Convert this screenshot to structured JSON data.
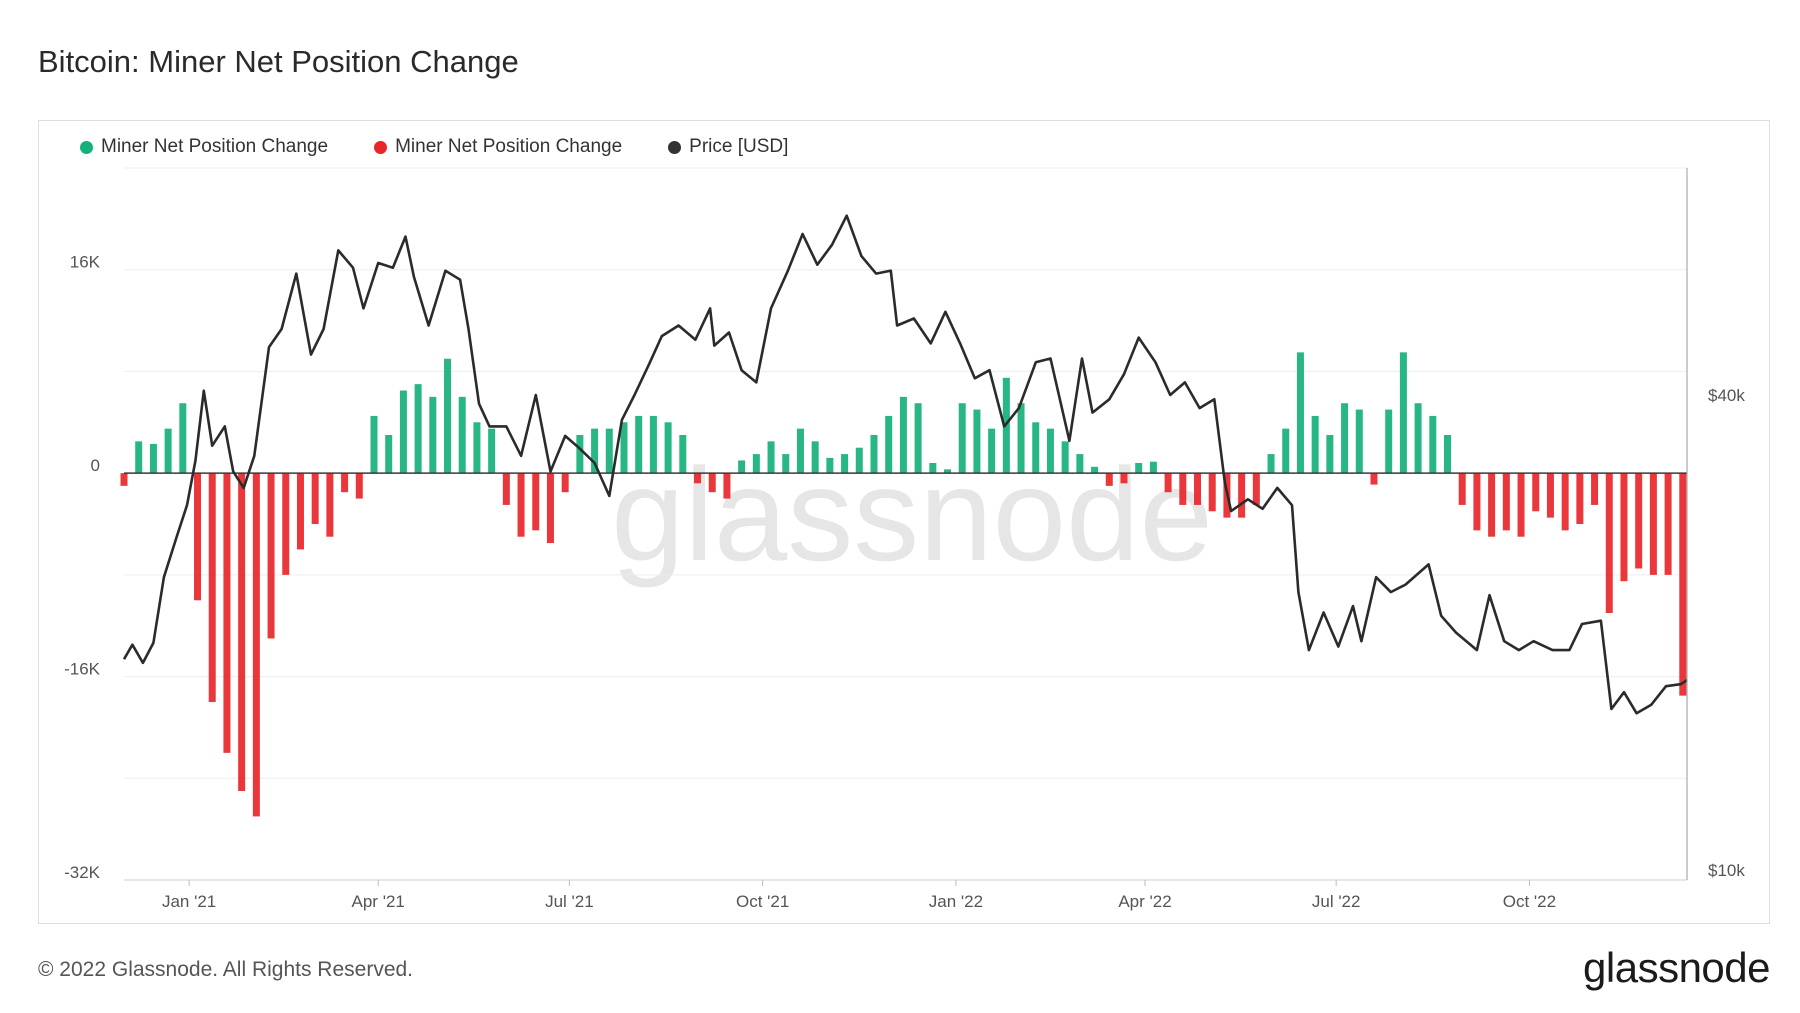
{
  "page": {
    "title": "Bitcoin: Miner Net Position Change",
    "footer": "© 2022 Glassnode. All Rights Reserved.",
    "brand": "glassnode",
    "watermark": "glassnode"
  },
  "legend": [
    {
      "label": "Miner Net Position Change",
      "color": "#16b07a"
    },
    {
      "label": "Miner Net Position Change",
      "color": "#e8262a"
    },
    {
      "label": "Price [USD]",
      "color": "#333333"
    }
  ],
  "chart_data": {
    "type": "bar",
    "title": "Bitcoin: Miner Net Position Change",
    "x_ticks": [
      "Jan '21",
      "Apr '21",
      "Jul '21",
      "Oct '21",
      "Jan '22",
      "Apr '22",
      "Jul '22",
      "Oct '22"
    ],
    "x_tick_dates": [
      "2021-01-01",
      "2021-04-01",
      "2021-07-01",
      "2021-10-01",
      "2022-01-01",
      "2022-04-01",
      "2022-07-01",
      "2022-10-01"
    ],
    "x_range": [
      "2020-12-01",
      "2022-12-15"
    ],
    "y_left": {
      "ticks": [
        "16K",
        "0",
        "-16K",
        "-32K"
      ],
      "tick_values": [
        16000,
        0,
        -16000,
        -32000
      ],
      "range": [
        -32000,
        24000
      ]
    },
    "y_right": {
      "ticks": [
        "$40k",
        "$10k"
      ],
      "tick_values": [
        40000,
        10000
      ],
      "scale": "log"
    },
    "colors": {
      "positive": "#16b07a",
      "negative": "#e8262a",
      "price": "#2b2b2b"
    },
    "grid": true,
    "legend_position": "top-left",
    "series": [
      {
        "name": "Miner Net Position Change",
        "kind": "bar",
        "points": [
          [
            "2020-12-01",
            -1000
          ],
          [
            "2020-12-08",
            2500
          ],
          [
            "2020-12-15",
            2300
          ],
          [
            "2020-12-22",
            3500
          ],
          [
            "2020-12-29",
            5500
          ],
          [
            "2021-01-05",
            -10000
          ],
          [
            "2021-01-12",
            -18000
          ],
          [
            "2021-01-19",
            -22000
          ],
          [
            "2021-01-26",
            -25000
          ],
          [
            "2021-02-02",
            -27000
          ],
          [
            "2021-02-09",
            -13000
          ],
          [
            "2021-02-16",
            -8000
          ],
          [
            "2021-02-23",
            -6000
          ],
          [
            "2021-03-02",
            -4000
          ],
          [
            "2021-03-09",
            -5000
          ],
          [
            "2021-03-16",
            -1500
          ],
          [
            "2021-03-23",
            -2000
          ],
          [
            "2021-03-30",
            4500
          ],
          [
            "2021-04-06",
            3000
          ],
          [
            "2021-04-13",
            6500
          ],
          [
            "2021-04-20",
            7000
          ],
          [
            "2021-04-27",
            6000
          ],
          [
            "2021-05-04",
            9000
          ],
          [
            "2021-05-11",
            6000
          ],
          [
            "2021-05-18",
            4000
          ],
          [
            "2021-05-25",
            3500
          ],
          [
            "2021-06-01",
            -2500
          ],
          [
            "2021-06-08",
            -5000
          ],
          [
            "2021-06-15",
            -4500
          ],
          [
            "2021-06-22",
            -5500
          ],
          [
            "2021-06-29",
            -1500
          ],
          [
            "2021-07-06",
            3000
          ],
          [
            "2021-07-13",
            3500
          ],
          [
            "2021-07-20",
            3500
          ],
          [
            "2021-07-27",
            4000
          ],
          [
            "2021-08-03",
            4500
          ],
          [
            "2021-08-10",
            4500
          ],
          [
            "2021-08-17",
            4000
          ],
          [
            "2021-08-24",
            3000
          ],
          [
            "2021-08-31",
            -800
          ],
          [
            "2021-09-07",
            -1500
          ],
          [
            "2021-09-14",
            -2000
          ],
          [
            "2021-09-21",
            1000
          ],
          [
            "2021-09-28",
            1500
          ],
          [
            "2021-10-05",
            2500
          ],
          [
            "2021-10-12",
            1500
          ],
          [
            "2021-10-19",
            3500
          ],
          [
            "2021-10-26",
            2500
          ],
          [
            "2021-11-02",
            1200
          ],
          [
            "2021-11-09",
            1500
          ],
          [
            "2021-11-16",
            2000
          ],
          [
            "2021-11-23",
            3000
          ],
          [
            "2021-11-30",
            4500
          ],
          [
            "2021-12-07",
            6000
          ],
          [
            "2021-12-14",
            5500
          ],
          [
            "2021-12-21",
            800
          ],
          [
            "2021-12-28",
            300
          ],
          [
            "2022-01-04",
            5500
          ],
          [
            "2022-01-11",
            5000
          ],
          [
            "2022-01-18",
            3500
          ],
          [
            "2022-01-25",
            7500
          ],
          [
            "2022-02-01",
            5500
          ],
          [
            "2022-02-08",
            4000
          ],
          [
            "2022-02-15",
            3500
          ],
          [
            "2022-02-22",
            2500
          ],
          [
            "2022-03-01",
            1500
          ],
          [
            "2022-03-08",
            500
          ],
          [
            "2022-03-15",
            -1000
          ],
          [
            "2022-03-22",
            -800
          ],
          [
            "2022-03-29",
            800
          ],
          [
            "2022-04-05",
            900
          ],
          [
            "2022-04-12",
            -1500
          ],
          [
            "2022-04-19",
            -2500
          ],
          [
            "2022-04-26",
            -2500
          ],
          [
            "2022-05-03",
            -3000
          ],
          [
            "2022-05-10",
            -3500
          ],
          [
            "2022-05-17",
            -3500
          ],
          [
            "2022-05-24",
            -2500
          ],
          [
            "2022-05-31",
            1500
          ],
          [
            "2022-06-07",
            3500
          ],
          [
            "2022-06-14",
            9500
          ],
          [
            "2022-06-21",
            4500
          ],
          [
            "2022-06-28",
            3000
          ],
          [
            "2022-07-05",
            5500
          ],
          [
            "2022-07-12",
            5000
          ],
          [
            "2022-07-19",
            -900
          ],
          [
            "2022-07-26",
            5000
          ],
          [
            "2022-08-02",
            9500
          ],
          [
            "2022-08-09",
            5500
          ],
          [
            "2022-08-16",
            4500
          ],
          [
            "2022-08-23",
            3000
          ],
          [
            "2022-08-30",
            -2500
          ],
          [
            "2022-09-06",
            -4500
          ],
          [
            "2022-09-13",
            -5000
          ],
          [
            "2022-09-20",
            -4500
          ],
          [
            "2022-09-27",
            -5000
          ],
          [
            "2022-10-04",
            -3000
          ],
          [
            "2022-10-11",
            -3500
          ],
          [
            "2022-10-18",
            -4500
          ],
          [
            "2022-10-25",
            -4000
          ],
          [
            "2022-11-01",
            -2500
          ],
          [
            "2022-11-08",
            -11000
          ],
          [
            "2022-11-15",
            -8500
          ],
          [
            "2022-11-22",
            -7500
          ],
          [
            "2022-11-29",
            -8000
          ],
          [
            "2022-12-06",
            -8000
          ],
          [
            "2022-12-13",
            -17500
          ]
        ]
      },
      {
        "name": "Price [USD]",
        "kind": "line",
        "axis": "right",
        "points": [
          [
            "2020-12-01",
            18500
          ],
          [
            "2020-12-05",
            19300
          ],
          [
            "2020-12-10",
            18300
          ],
          [
            "2020-12-15",
            19400
          ],
          [
            "2020-12-20",
            23500
          ],
          [
            "2020-12-26",
            26400
          ],
          [
            "2020-12-31",
            29000
          ],
          [
            "2021-01-04",
            33000
          ],
          [
            "2021-01-08",
            40500
          ],
          [
            "2021-01-12",
            34500
          ],
          [
            "2021-01-18",
            36500
          ],
          [
            "2021-01-22",
            32000
          ],
          [
            "2021-01-27",
            30500
          ],
          [
            "2021-02-01",
            33500
          ],
          [
            "2021-02-08",
            46000
          ],
          [
            "2021-02-14",
            48500
          ],
          [
            "2021-02-21",
            57000
          ],
          [
            "2021-02-28",
            45000
          ],
          [
            "2021-03-06",
            48500
          ],
          [
            "2021-03-13",
            61000
          ],
          [
            "2021-03-20",
            58000
          ],
          [
            "2021-03-25",
            51500
          ],
          [
            "2021-04-01",
            58800
          ],
          [
            "2021-04-08",
            58000
          ],
          [
            "2021-04-14",
            63500
          ],
          [
            "2021-04-18",
            56500
          ],
          [
            "2021-04-25",
            49000
          ],
          [
            "2021-05-03",
            57500
          ],
          [
            "2021-05-10",
            56000
          ],
          [
            "2021-05-14",
            48500
          ],
          [
            "2021-05-19",
            39000
          ],
          [
            "2021-05-24",
            36500
          ],
          [
            "2021-06-01",
            36500
          ],
          [
            "2021-06-08",
            33500
          ],
          [
            "2021-06-15",
            40000
          ],
          [
            "2021-06-22",
            32000
          ],
          [
            "2021-06-29",
            35500
          ],
          [
            "2021-07-06",
            34200
          ],
          [
            "2021-07-13",
            32800
          ],
          [
            "2021-07-20",
            29800
          ],
          [
            "2021-07-26",
            37200
          ],
          [
            "2021-08-01",
            40000
          ],
          [
            "2021-08-08",
            43800
          ],
          [
            "2021-08-14",
            47500
          ],
          [
            "2021-08-22",
            49000
          ],
          [
            "2021-08-30",
            47000
          ],
          [
            "2021-09-06",
            51500
          ],
          [
            "2021-09-08",
            46200
          ],
          [
            "2021-09-15",
            48000
          ],
          [
            "2021-09-21",
            43000
          ],
          [
            "2021-09-28",
            41500
          ],
          [
            "2021-10-05",
            51500
          ],
          [
            "2021-10-13",
            57500
          ],
          [
            "2021-10-20",
            64000
          ],
          [
            "2021-10-27",
            58500
          ],
          [
            "2021-11-03",
            62000
          ],
          [
            "2021-11-10",
            67500
          ],
          [
            "2021-11-17",
            60000
          ],
          [
            "2021-11-24",
            57000
          ],
          [
            "2021-12-01",
            57500
          ],
          [
            "2021-12-04",
            49000
          ],
          [
            "2021-12-12",
            50000
          ],
          [
            "2021-12-20",
            46500
          ],
          [
            "2021-12-27",
            51000
          ],
          [
            "2022-01-03",
            46500
          ],
          [
            "2022-01-10",
            42000
          ],
          [
            "2022-01-17",
            43000
          ],
          [
            "2022-01-24",
            36500
          ],
          [
            "2022-01-31",
            38500
          ],
          [
            "2022-02-08",
            44000
          ],
          [
            "2022-02-15",
            44500
          ],
          [
            "2022-02-24",
            35000
          ],
          [
            "2022-03-02",
            44500
          ],
          [
            "2022-03-07",
            38000
          ],
          [
            "2022-03-15",
            39500
          ],
          [
            "2022-03-22",
            42500
          ],
          [
            "2022-03-29",
            47300
          ],
          [
            "2022-04-06",
            44000
          ],
          [
            "2022-04-13",
            40000
          ],
          [
            "2022-04-20",
            41500
          ],
          [
            "2022-04-27",
            38500
          ],
          [
            "2022-05-04",
            39500
          ],
          [
            "2022-05-09",
            31000
          ],
          [
            "2022-05-12",
            28500
          ],
          [
            "2022-05-20",
            29500
          ],
          [
            "2022-05-27",
            28700
          ],
          [
            "2022-06-03",
            30500
          ],
          [
            "2022-06-10",
            29000
          ],
          [
            "2022-06-13",
            22500
          ],
          [
            "2022-06-18",
            19000
          ],
          [
            "2022-06-25",
            21200
          ],
          [
            "2022-07-02",
            19200
          ],
          [
            "2022-07-09",
            21600
          ],
          [
            "2022-07-13",
            19500
          ],
          [
            "2022-07-20",
            23500
          ],
          [
            "2022-07-27",
            22500
          ],
          [
            "2022-08-03",
            23000
          ],
          [
            "2022-08-14",
            24400
          ],
          [
            "2022-08-20",
            21000
          ],
          [
            "2022-08-27",
            20000
          ],
          [
            "2022-09-06",
            19000
          ],
          [
            "2022-09-12",
            22300
          ],
          [
            "2022-09-19",
            19500
          ],
          [
            "2022-09-26",
            19000
          ],
          [
            "2022-10-03",
            19500
          ],
          [
            "2022-10-12",
            19000
          ],
          [
            "2022-10-20",
            19000
          ],
          [
            "2022-10-26",
            20500
          ],
          [
            "2022-11-04",
            20700
          ],
          [
            "2022-11-09",
            16000
          ],
          [
            "2022-11-15",
            16800
          ],
          [
            "2022-11-21",
            15800
          ],
          [
            "2022-11-28",
            16200
          ],
          [
            "2022-12-05",
            17100
          ],
          [
            "2022-12-12",
            17200
          ],
          [
            "2022-12-15",
            17400
          ]
        ]
      }
    ]
  }
}
